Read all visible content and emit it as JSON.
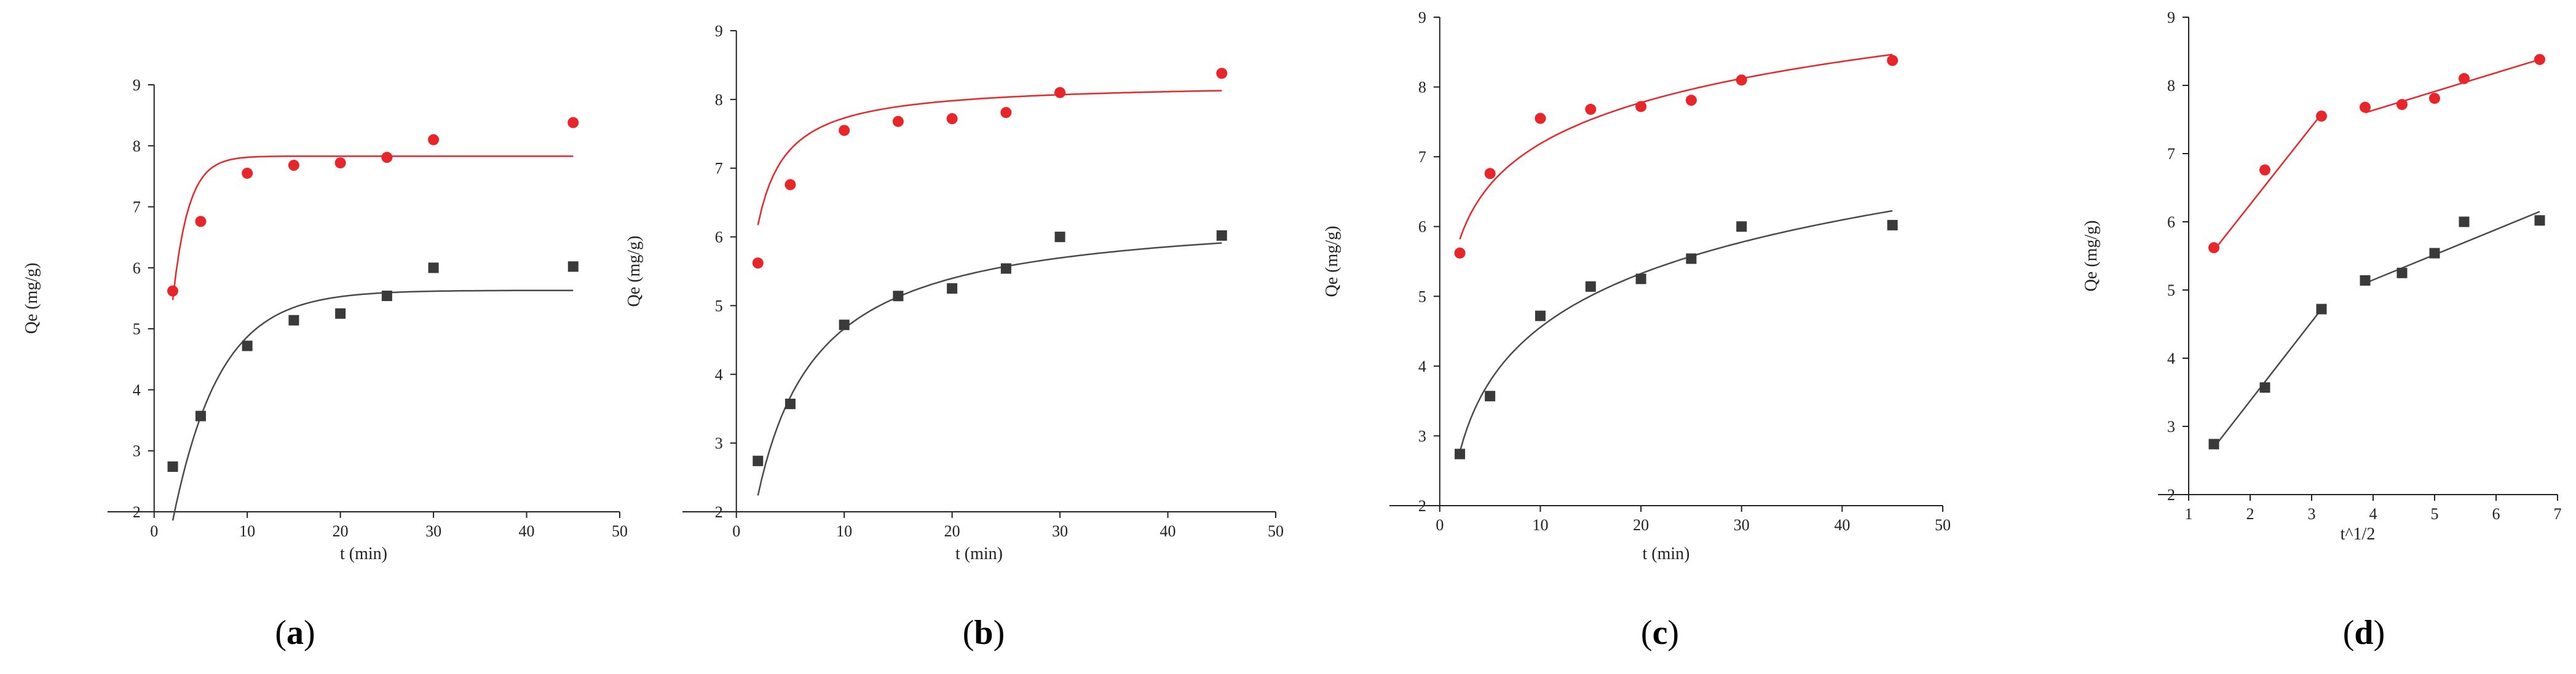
{
  "chart_data": [
    {
      "type": "scatter",
      "panel_label": "a",
      "xlabel": "t (min)",
      "ylabel": "Qe (mg/g)",
      "xlim": [
        -5,
        50
      ],
      "ylim": [
        2,
        9
      ],
      "xticks": [
        0,
        10,
        20,
        30,
        40,
        50
      ],
      "yticks": [
        2,
        3,
        4,
        5,
        6,
        7,
        8,
        9
      ],
      "series": [
        {
          "name": "red",
          "color": "#e8262a",
          "marker": "circle",
          "x": [
            2,
            5,
            10,
            15,
            20,
            25,
            30,
            45
          ],
          "y": [
            5.62,
            6.76,
            7.55,
            7.68,
            7.72,
            7.81,
            8.1,
            8.38
          ]
        },
        {
          "name": "black",
          "color": "#3a3a3a",
          "marker": "square",
          "x": [
            2,
            5,
            10,
            15,
            20,
            25,
            30,
            45
          ],
          "y": [
            2.74,
            3.57,
            4.72,
            5.14,
            5.25,
            5.54,
            6.0,
            6.02
          ]
        }
      ],
      "fits": [
        {
          "color": "#e8262a",
          "model": "pfo",
          "qe": 7.83,
          "k": 0.6,
          "x0": 2,
          "x1": 45
        },
        {
          "color": "#4a4a4a",
          "model": "pfo",
          "qe": 5.63,
          "k": 0.2,
          "x0": 2,
          "x1": 45
        }
      ]
    },
    {
      "type": "scatter",
      "panel_label": "b",
      "xlabel": "t (min)",
      "ylabel": "Qe (mg/g)",
      "xlim": [
        -5,
        50
      ],
      "ylim": [
        2,
        9
      ],
      "xticks": [
        0,
        10,
        20,
        30,
        40,
        50
      ],
      "yticks": [
        2,
        3,
        4,
        5,
        6,
        7,
        8,
        9
      ],
      "series": [
        {
          "name": "red",
          "color": "#e8262a",
          "marker": "circle",
          "x": [
            2,
            5,
            10,
            15,
            20,
            25,
            30,
            45
          ],
          "y": [
            5.62,
            6.76,
            7.55,
            7.68,
            7.72,
            7.81,
            8.1,
            8.38
          ]
        },
        {
          "name": "black",
          "color": "#3a3a3a",
          "marker": "square",
          "x": [
            2,
            5,
            10,
            15,
            20,
            25,
            30,
            45
          ],
          "y": [
            2.74,
            3.57,
            4.72,
            5.14,
            5.25,
            5.54,
            6.0,
            6.02
          ]
        }
      ],
      "fits": [
        {
          "color": "#e8262a",
          "model": "pso",
          "qe": 8.25,
          "k": 0.18,
          "x0": 2,
          "x1": 45
        },
        {
          "color": "#4a4a4a",
          "model": "pso",
          "qe": 6.4,
          "k": 0.042,
          "x0": 2,
          "x1": 45
        }
      ]
    },
    {
      "type": "scatter",
      "panel_label": "c",
      "xlabel": "t (min)",
      "ylabel": "Qe (mg/g)",
      "xlim": [
        -5,
        50
      ],
      "ylim": [
        2,
        9
      ],
      "xticks": [
        0,
        10,
        20,
        30,
        40,
        50
      ],
      "yticks": [
        2,
        3,
        4,
        5,
        6,
        7,
        8,
        9
      ],
      "series": [
        {
          "name": "red",
          "color": "#e8262a",
          "marker": "circle",
          "x": [
            2,
            5,
            10,
            15,
            20,
            25,
            30,
            45
          ],
          "y": [
            5.62,
            6.76,
            7.55,
            7.68,
            7.72,
            7.81,
            8.1,
            8.38
          ]
        },
        {
          "name": "black",
          "color": "#3a3a3a",
          "marker": "square",
          "x": [
            2,
            5,
            10,
            15,
            20,
            25,
            30,
            45
          ],
          "y": [
            2.74,
            3.57,
            4.72,
            5.14,
            5.25,
            5.54,
            6.0,
            6.02
          ]
        }
      ],
      "fits": [
        {
          "color": "#e8262a",
          "model": "log",
          "a": 5.23,
          "b": 0.85,
          "x0": 2,
          "x1": 45
        },
        {
          "color": "#4a4a4a",
          "model": "log",
          "a": 2.0,
          "b": 1.11,
          "x0": 2,
          "x1": 45
        }
      ]
    },
    {
      "type": "scatter",
      "panel_label": "d",
      "xlabel": "t^1/2",
      "ylabel": "Qe (mg/g)",
      "xlim": [
        0.5,
        7
      ],
      "ylim": [
        2,
        9
      ],
      "xticks": [
        1,
        2,
        3,
        4,
        5,
        6,
        7
      ],
      "yticks": [
        2,
        3,
        4,
        5,
        6,
        7,
        8,
        9
      ],
      "series": [
        {
          "name": "red",
          "color": "#e8262a",
          "marker": "circle",
          "x": [
            1.41,
            2.24,
            3.16,
            3.87,
            4.47,
            5.0,
            5.48,
            6.71
          ],
          "y": [
            5.62,
            6.76,
            7.55,
            7.68,
            7.72,
            7.81,
            8.1,
            8.38
          ]
        },
        {
          "name": "black",
          "color": "#3a3a3a",
          "marker": "square",
          "x": [
            1.41,
            2.24,
            3.16,
            3.87,
            4.47,
            5.0,
            5.48,
            6.71
          ],
          "y": [
            2.74,
            3.57,
            4.72,
            5.14,
            5.25,
            5.54,
            6.0,
            6.02
          ]
        }
      ],
      "fits": [
        {
          "color": "#e8262a",
          "model": "linear",
          "p0": [
            1.41,
            5.58
          ],
          "p1": [
            3.16,
            7.58
          ]
        },
        {
          "color": "#e8262a",
          "model": "linear",
          "p0": [
            3.87,
            7.6
          ],
          "p1": [
            6.71,
            8.38
          ]
        },
        {
          "color": "#4a4a4a",
          "model": "linear",
          "p0": [
            1.41,
            2.69
          ],
          "p1": [
            3.16,
            4.72
          ]
        },
        {
          "color": "#4a4a4a",
          "model": "linear",
          "p0": [
            3.87,
            5.1
          ],
          "p1": [
            6.71,
            6.15
          ]
        }
      ]
    }
  ]
}
